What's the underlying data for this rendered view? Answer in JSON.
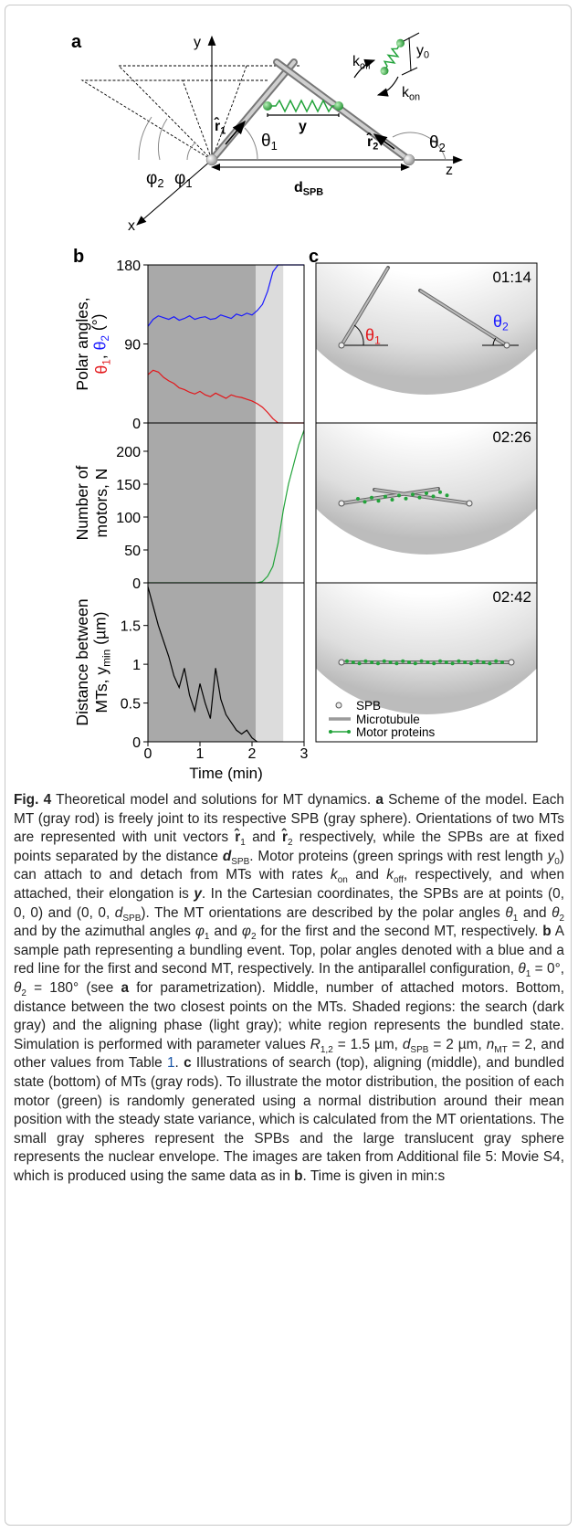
{
  "panel_labels": {
    "a": "a",
    "b": "b",
    "c": "c"
  },
  "panel_a": {
    "axis_y": [
      {
        "text": "y"
      }
    ],
    "axis_x": [
      {
        "text": "x"
      }
    ],
    "axis_z": [
      {
        "text": "z"
      }
    ],
    "k_off": [
      {
        "text": "k"
      },
      {
        "text": "off",
        "style": "s"
      }
    ],
    "k_on": [
      {
        "text": "k"
      },
      {
        "text": "on",
        "style": "s"
      }
    ],
    "y0": [
      {
        "text": "y"
      },
      {
        "text": "0",
        "style": "s"
      }
    ],
    "y_spring": [
      {
        "text": "y",
        "style": "b"
      }
    ],
    "r1": [
      {
        "text": "r̂",
        "style": "b"
      },
      {
        "text": "1",
        "style": "bs"
      }
    ],
    "r2": [
      {
        "text": "r̂",
        "style": "b"
      },
      {
        "text": "2",
        "style": "bs"
      }
    ],
    "theta1": [
      {
        "text": "θ"
      },
      {
        "text": "1",
        "style": "s"
      }
    ],
    "theta2": [
      {
        "text": "θ"
      },
      {
        "text": "2",
        "style": "s"
      }
    ],
    "phi1": [
      {
        "text": "φ"
      },
      {
        "text": "1",
        "style": "s"
      }
    ],
    "phi2": [
      {
        "text": "φ"
      },
      {
        "text": "2",
        "style": "s"
      }
    ],
    "d_spb": [
      {
        "text": "d",
        "style": "b"
      },
      {
        "text": "SPB",
        "style": "bs"
      }
    ]
  },
  "chart_data": [
    {
      "type": "line",
      "xlim": [
        0,
        3
      ],
      "ylim": [
        0,
        180
      ],
      "yticks": [
        0,
        90,
        180
      ],
      "shaded": [
        {
          "from": 0,
          "to": 2.07,
          "color": "#a9a9a9"
        },
        {
          "from": 2.07,
          "to": 2.6,
          "color": "#dcdcdc"
        }
      ],
      "ylabel": [
        [
          {
            "text": "Polar angles,"
          }
        ],
        [
          {
            "text": "θ",
            "color": "#e3171b"
          },
          {
            "text": "1",
            "style": "s",
            "color": "#e3171b"
          },
          {
            "text": ", "
          },
          {
            "text": "θ",
            "color": "#1a1aff"
          },
          {
            "text": "2",
            "style": "s",
            "color": "#1a1aff"
          },
          {
            "text": " (°)"
          }
        ]
      ],
      "x": [
        0,
        0.1,
        0.2,
        0.3,
        0.4,
        0.5,
        0.6,
        0.7,
        0.8,
        0.9,
        1.0,
        1.1,
        1.2,
        1.3,
        1.4,
        1.5,
        1.6,
        1.7,
        1.8,
        1.9,
        2.0,
        2.1,
        2.2,
        2.3,
        2.4,
        2.5,
        2.6,
        2.7,
        2.8,
        2.9,
        3.0
      ],
      "series": [
        {
          "color": "#1a1aff",
          "values": [
            110,
            118,
            122,
            120,
            118,
            121,
            117,
            119,
            122,
            118,
            120,
            121,
            118,
            119,
            123,
            121,
            119,
            124,
            122,
            125,
            123,
            128,
            135,
            150,
            172,
            180,
            180,
            180,
            180,
            180,
            180
          ]
        },
        {
          "color": "#e3171b",
          "values": [
            55,
            60,
            58,
            52,
            48,
            45,
            40,
            38,
            35,
            33,
            36,
            32,
            30,
            34,
            31,
            28,
            32,
            30,
            29,
            27,
            25,
            22,
            18,
            12,
            5,
            0,
            0,
            0,
            0,
            0,
            0
          ]
        }
      ]
    },
    {
      "type": "line",
      "xlim": [
        0,
        3
      ],
      "ylim": [
        0,
        243
      ],
      "yticks": [
        0,
        50,
        100,
        150,
        200
      ],
      "shaded": [
        {
          "from": 0,
          "to": 2.07,
          "color": "#a9a9a9"
        },
        {
          "from": 2.07,
          "to": 2.6,
          "color": "#dcdcdc"
        }
      ],
      "ylabel": [
        [
          {
            "text": "Number of"
          }
        ],
        [
          {
            "text": "motors, N"
          }
        ]
      ],
      "x": [
        0,
        0.1,
        0.2,
        0.3,
        0.4,
        0.5,
        0.6,
        0.7,
        0.8,
        0.9,
        1.0,
        1.1,
        1.2,
        1.3,
        1.4,
        1.5,
        1.6,
        1.7,
        1.8,
        1.9,
        2.0,
        2.1,
        2.2,
        2.3,
        2.4,
        2.5,
        2.6,
        2.7,
        2.8,
        2.9,
        3.0
      ],
      "series": [
        {
          "color": "#22a33a",
          "values": [
            0,
            0,
            0,
            0,
            0,
            0,
            0,
            0,
            0,
            0,
            0,
            0,
            0,
            0,
            0,
            0,
            0,
            0,
            0,
            0,
            0,
            0,
            2,
            10,
            25,
            60,
            110,
            150,
            180,
            210,
            232
          ]
        }
      ]
    },
    {
      "type": "line",
      "xlim": [
        0,
        3
      ],
      "ylim": [
        0,
        2.05
      ],
      "xticks": [
        0,
        1,
        2,
        3
      ],
      "yticks": [
        0,
        0.5,
        1,
        1.5
      ],
      "xlabel": "Time (min)",
      "shaded": [
        {
          "from": 0,
          "to": 2.07,
          "color": "#a9a9a9"
        },
        {
          "from": 2.07,
          "to": 2.6,
          "color": "#dcdcdc"
        }
      ],
      "ylabel": [
        [
          {
            "text": "Distance between"
          }
        ],
        [
          {
            "text": "MTs, y"
          },
          {
            "text": "min",
            "style": "s"
          },
          {
            "text": " (µm)"
          }
        ]
      ],
      "x": [
        0,
        0.1,
        0.2,
        0.3,
        0.4,
        0.5,
        0.6,
        0.7,
        0.8,
        0.9,
        1.0,
        1.1,
        1.2,
        1.3,
        1.4,
        1.5,
        1.6,
        1.7,
        1.8,
        1.9,
        2.0,
        2.1
      ],
      "series": [
        {
          "color": "#000000",
          "values": [
            2.0,
            1.75,
            1.5,
            1.3,
            1.1,
            0.85,
            0.7,
            0.95,
            0.6,
            0.4,
            0.75,
            0.5,
            0.3,
            0.95,
            0.55,
            0.35,
            0.25,
            0.15,
            0.1,
            0.15,
            0.05,
            0
          ]
        }
      ]
    }
  ],
  "panel_c": {
    "times": [
      "01:14",
      "02:26",
      "02:42"
    ],
    "theta1": [
      {
        "text": "θ",
        "color": "#e3171b"
      },
      {
        "text": "1",
        "style": "s",
        "color": "#e3171b"
      }
    ],
    "theta2": [
      {
        "text": "θ",
        "color": "#1a1aff"
      },
      {
        "text": "2",
        "style": "s",
        "color": "#1a1aff"
      }
    ],
    "legend": [
      "SPB",
      "Microtubule",
      "Motor proteins"
    ]
  },
  "caption": [
    {
      "text": "Fig. 4",
      "style": "b"
    },
    {
      "text": " Theoretical model and solutions for MT dynamics. "
    },
    {
      "text": "a",
      "style": "b"
    },
    {
      "text": " Scheme of the model. Each MT (gray rod) is freely joint to its respective SPB (gray sphere). Orientations of two MTs are represented with unit vectors "
    },
    {
      "text": "r̂",
      "style": "b"
    },
    {
      "text": "1",
      "style": "s"
    },
    {
      "text": " and "
    },
    {
      "text": "r̂",
      "style": "b"
    },
    {
      "text": "2",
      "style": "s"
    },
    {
      "text": " respectively, while the SPBs are at fixed points separated by the distance "
    },
    {
      "text": "d",
      "style": "bi"
    },
    {
      "text": "SPB",
      "style": "s"
    },
    {
      "text": ". Motor proteins (green springs with rest length "
    },
    {
      "text": "y",
      "style": "i"
    },
    {
      "text": "0",
      "style": "s"
    },
    {
      "text": ") can attach to and detach from MTs with rates "
    },
    {
      "text": "k",
      "style": "i"
    },
    {
      "text": "on",
      "style": "s"
    },
    {
      "text": " and "
    },
    {
      "text": "k",
      "style": "i"
    },
    {
      "text": "off",
      "style": "s"
    },
    {
      "text": ", respectively, and when attached, their elongation is "
    },
    {
      "text": "y",
      "style": "bi"
    },
    {
      "text": ". In the Cartesian coordinates, the SPBs are at points (0, 0, 0) and (0, 0, "
    },
    {
      "text": "d",
      "style": "i"
    },
    {
      "text": "SPB",
      "style": "s"
    },
    {
      "text": "). The MT orientations are described by the polar angles "
    },
    {
      "text": "θ",
      "style": "i"
    },
    {
      "text": "1",
      "style": "s"
    },
    {
      "text": " and "
    },
    {
      "text": "θ",
      "style": "i"
    },
    {
      "text": "2",
      "style": "s"
    },
    {
      "text": " and by the azimuthal angles "
    },
    {
      "text": "φ",
      "style": "i"
    },
    {
      "text": "1",
      "style": "s"
    },
    {
      "text": " and "
    },
    {
      "text": "φ",
      "style": "i"
    },
    {
      "text": "2",
      "style": "s"
    },
    {
      "text": " for the first and the second MT, respectively. "
    },
    {
      "text": "b",
      "style": "b"
    },
    {
      "text": " A sample path representing a bundling event. Top, polar angles denoted with a blue and a red line for the first and second MT, respectively. In the antiparallel configuration, "
    },
    {
      "text": "θ",
      "style": "i"
    },
    {
      "text": "1",
      "style": "s"
    },
    {
      "text": " = 0°, "
    },
    {
      "text": "θ",
      "style": "i"
    },
    {
      "text": "2",
      "style": "s"
    },
    {
      "text": " = 180° (see "
    },
    {
      "text": "a",
      "style": "b"
    },
    {
      "text": " for parametrization). Middle, number of attached motors. Bottom, distance between the two closest points on the MTs. Shaded regions: the search (dark gray) and the aligning phase (light gray); white region represents the bundled state. Simulation is performed with parameter values "
    },
    {
      "text": "R",
      "style": "i"
    },
    {
      "text": "1,2",
      "style": "s"
    },
    {
      "text": " = 1.5 µm, "
    },
    {
      "text": "d",
      "style": "i"
    },
    {
      "text": "SPB",
      "style": "s"
    },
    {
      "text": " = 2 µm, "
    },
    {
      "text": "n",
      "style": "i"
    },
    {
      "text": "MT",
      "style": "s"
    },
    {
      "text": " = 2, and other values from Table "
    },
    {
      "text": "1",
      "style": "l"
    },
    {
      "text": ". "
    },
    {
      "text": "c",
      "style": "b"
    },
    {
      "text": " Illustrations of search (top), aligning (middle), and bundled state (bottom) of MTs (gray rods). To illustrate the motor distribution, the position of each motor (green) is randomly generated using a normal distribution around their mean position with the steady state variance, which is calculated from the MT orientations. The small gray spheres represent the SPBs and the large translucent gray sphere represents the nuclear envelope. The images are taken from Additional file 5: Movie S4, which is produced using the same data as in "
    },
    {
      "text": "b",
      "style": "b"
    },
    {
      "text": ". Time is given in min:s"
    }
  ]
}
